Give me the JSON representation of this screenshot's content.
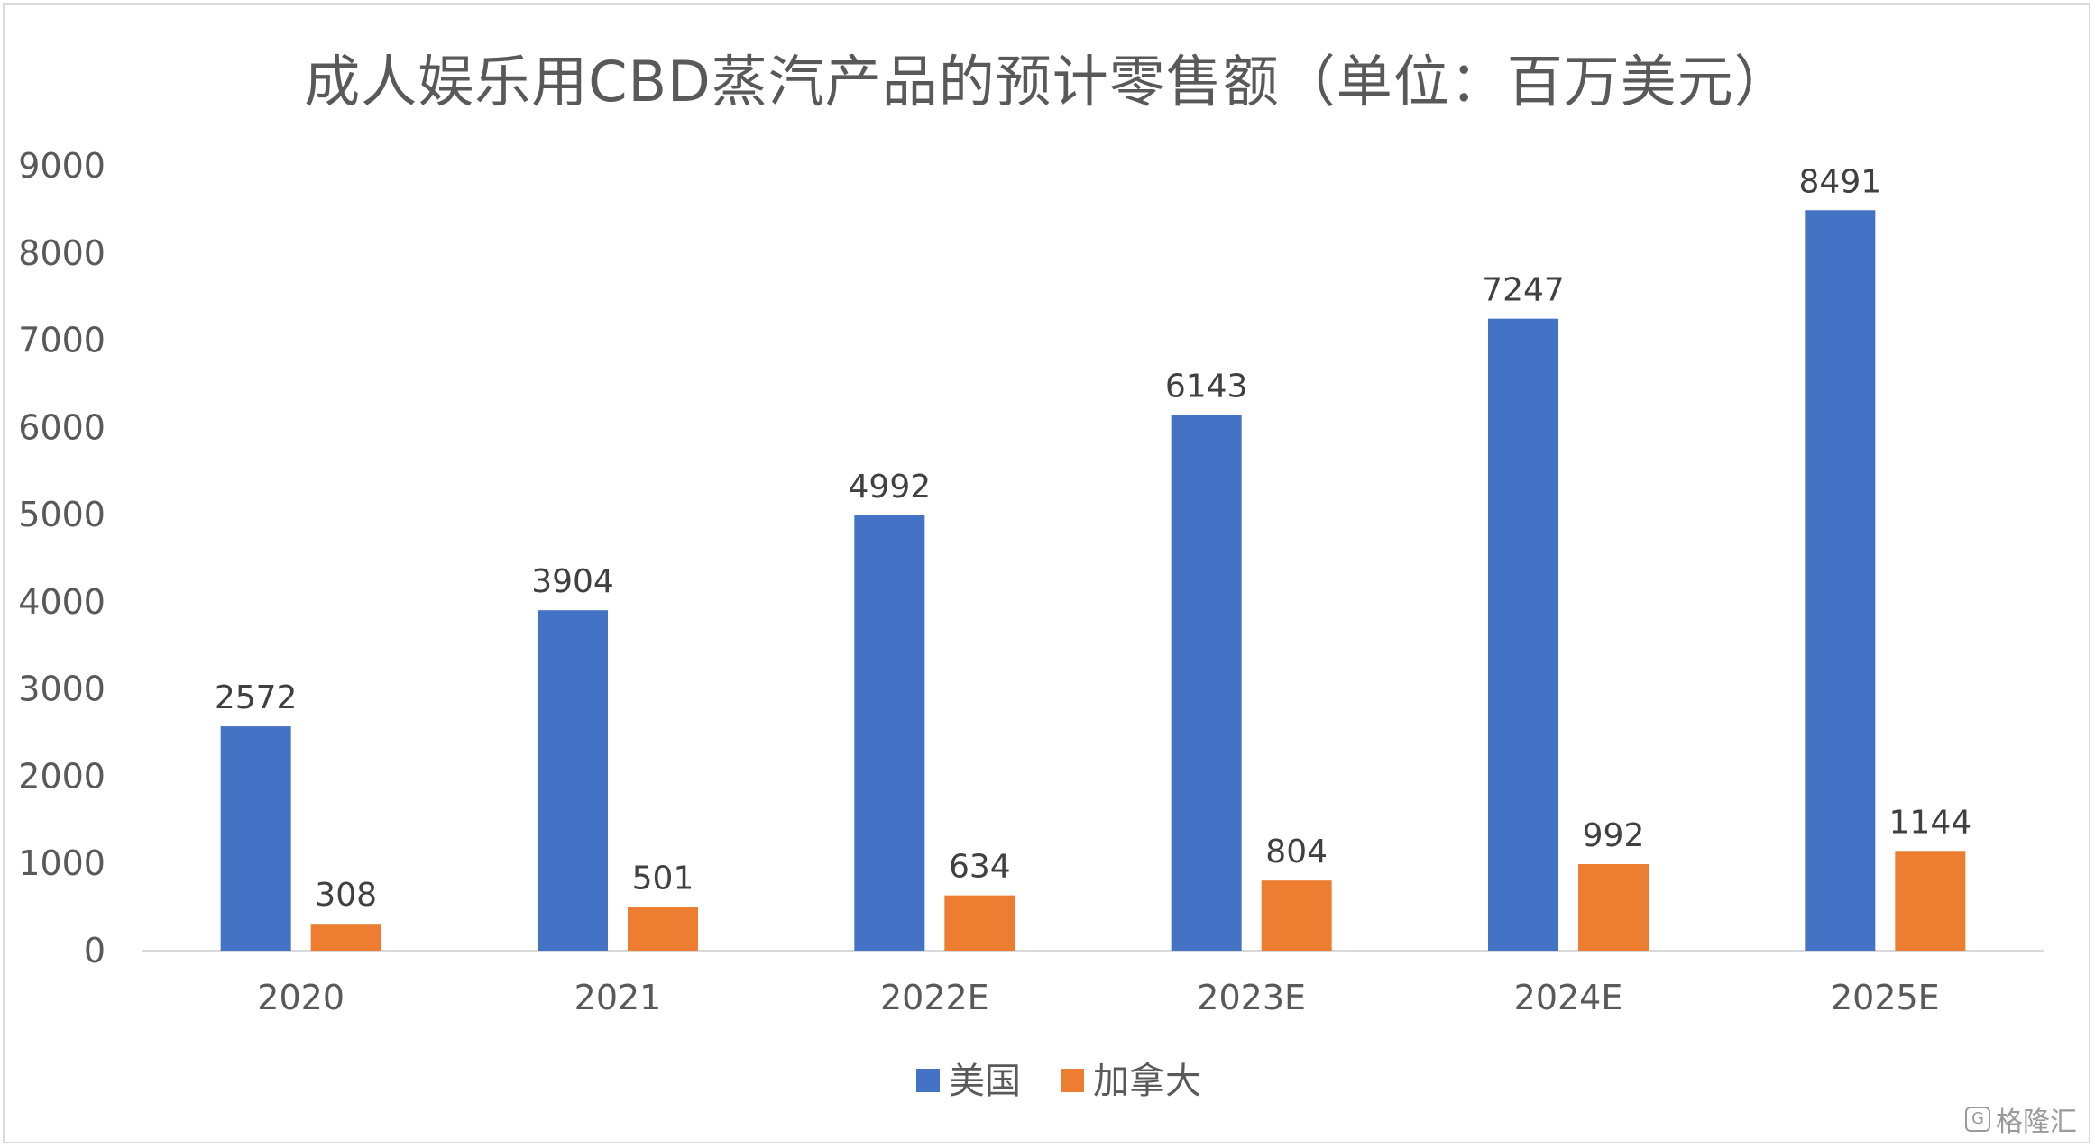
{
  "chart_data": {
    "type": "bar",
    "title": "成人娱乐用CBD蒸汽产品的预计零售额（单位：百万美元）",
    "categories": [
      "2020",
      "2021",
      "2022E",
      "2023E",
      "2024E",
      "2025E"
    ],
    "series": [
      {
        "name": "美国",
        "color": "#4472c4",
        "values": [
          2572,
          3904,
          4992,
          6143,
          7247,
          8491
        ]
      },
      {
        "name": "加拿大",
        "color": "#ed7d31",
        "values": [
          308,
          501,
          634,
          804,
          992,
          1144
        ]
      }
    ],
    "yticks": [
      0,
      1000,
      2000,
      3000,
      4000,
      5000,
      6000,
      7000,
      8000,
      9000
    ],
    "ylim": [
      0,
      9000
    ],
    "xlabel": "",
    "ylabel": "",
    "legend": "bottom"
  },
  "watermark": {
    "text": "格隆汇"
  }
}
